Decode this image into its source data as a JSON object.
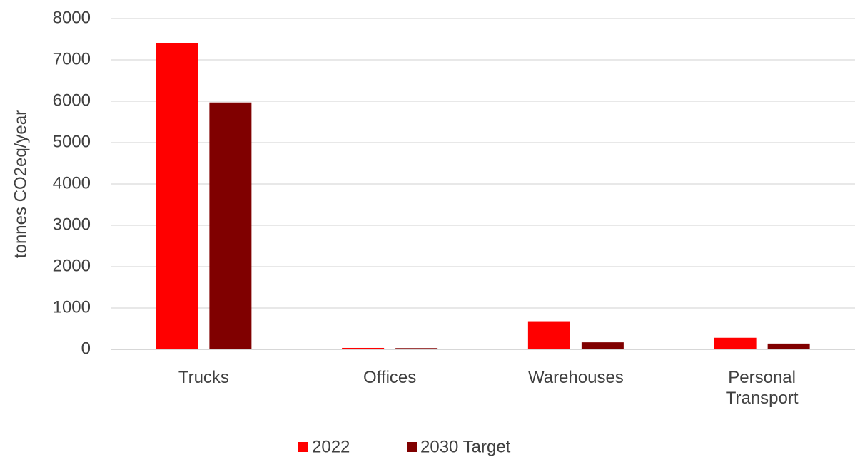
{
  "chart_data": {
    "type": "bar",
    "y_label": "tonnes CO2eq/year",
    "categories": [
      "Trucks",
      "Offices",
      "Warehouses",
      "Personal Transport"
    ],
    "series": [
      {
        "name": "2022",
        "color": "#ff0000",
        "values": [
          7400,
          35,
          680,
          280
        ]
      },
      {
        "name": "2030 Target",
        "color": "#800000",
        "values": [
          5970,
          30,
          170,
          140
        ]
      }
    ],
    "ylim": [
      0,
      8000
    ],
    "yticks": [
      0,
      1000,
      2000,
      3000,
      4000,
      5000,
      6000,
      7000,
      8000
    ],
    "grid": true,
    "legend": "bottom"
  }
}
